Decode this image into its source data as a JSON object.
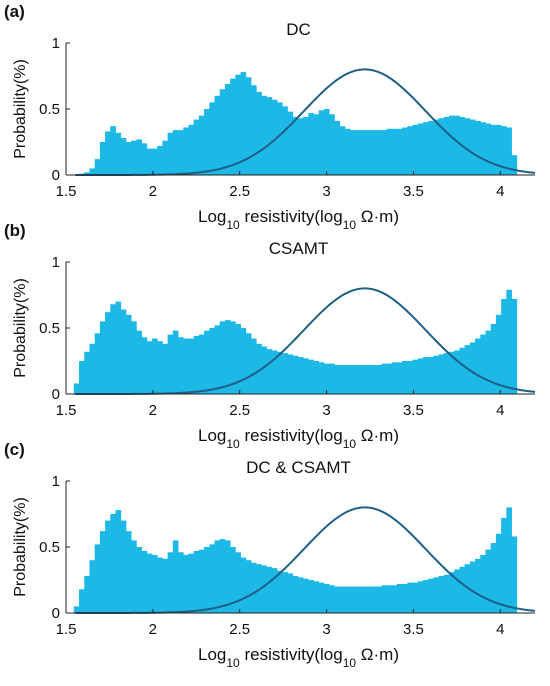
{
  "colors": {
    "histogram_fill": "#1CB8E6",
    "curve": "#1F5F86",
    "axis": "#222222",
    "text": "#111111"
  },
  "chart_data": [
    {
      "panel_label": "(a)",
      "title": "DC",
      "type": "bar",
      "xlabel": "Log10 resistivity(log10 Ω·m)",
      "ylabel": "Probability(%)",
      "xlim": [
        1.5,
        4.2
      ],
      "ylim": [
        0,
        1
      ],
      "xticks": [
        1.5,
        2,
        2.5,
        3,
        3.5,
        4
      ],
      "yticks": [
        0,
        0.5,
        1
      ],
      "xticklabels": [
        "1.5",
        "2",
        "2.5",
        "3",
        "3.5",
        "4"
      ],
      "yticklabels": [
        "0",
        "0.5",
        "1"
      ],
      "grid": false,
      "series": [
        {
          "type": "histogram",
          "x": [
            1.53,
            1.56,
            1.59,
            1.62,
            1.65,
            1.68,
            1.71,
            1.74,
            1.77,
            1.8,
            1.83,
            1.86,
            1.89,
            1.92,
            1.95,
            1.98,
            2.01,
            2.04,
            2.07,
            2.1,
            2.13,
            2.16,
            2.19,
            2.22,
            2.25,
            2.28,
            2.31,
            2.34,
            2.37,
            2.4,
            2.43,
            2.46,
            2.49,
            2.52,
            2.55,
            2.58,
            2.61,
            2.64,
            2.67,
            2.7,
            2.73,
            2.76,
            2.79,
            2.82,
            2.85,
            2.88,
            2.91,
            2.94,
            2.97,
            3.0,
            3.03,
            3.06,
            3.09,
            3.12,
            3.15,
            3.18,
            3.21,
            3.24,
            3.27,
            3.3,
            3.33,
            3.36,
            3.39,
            3.42,
            3.45,
            3.48,
            3.51,
            3.54,
            3.57,
            3.6,
            3.63,
            3.66,
            3.69,
            3.72,
            3.75,
            3.78,
            3.81,
            3.84,
            3.87,
            3.9,
            3.93,
            3.96,
            3.99,
            4.02,
            4.05,
            4.08
          ],
          "values": [
            0.0,
            0.0,
            0.01,
            0.02,
            0.05,
            0.12,
            0.25,
            0.33,
            0.37,
            0.32,
            0.28,
            0.25,
            0.26,
            0.27,
            0.24,
            0.2,
            0.2,
            0.22,
            0.26,
            0.32,
            0.34,
            0.34,
            0.36,
            0.38,
            0.42,
            0.45,
            0.5,
            0.55,
            0.6,
            0.65,
            0.69,
            0.73,
            0.76,
            0.78,
            0.74,
            0.68,
            0.63,
            0.6,
            0.59,
            0.57,
            0.55,
            0.52,
            0.48,
            0.44,
            0.43,
            0.44,
            0.47,
            0.46,
            0.49,
            0.5,
            0.46,
            0.41,
            0.37,
            0.35,
            0.34,
            0.34,
            0.34,
            0.34,
            0.34,
            0.34,
            0.34,
            0.35,
            0.35,
            0.35,
            0.36,
            0.37,
            0.38,
            0.39,
            0.4,
            0.41,
            0.42,
            0.43,
            0.44,
            0.45,
            0.45,
            0.44,
            0.43,
            0.42,
            0.41,
            0.4,
            0.39,
            0.38,
            0.38,
            0.37,
            0.36,
            0.15
          ]
        },
        {
          "type": "line",
          "mu": 3.22,
          "sigma": 0.35,
          "peak": 0.8
        }
      ]
    },
    {
      "panel_label": "(b)",
      "title": "CSAMT",
      "type": "bar",
      "xlabel": "Log10 resistivity(log10 Ω·m)",
      "ylabel": "Probability(%)",
      "xlim": [
        1.5,
        4.2
      ],
      "ylim": [
        0,
        1
      ],
      "xticks": [
        1.5,
        2,
        2.5,
        3,
        3.5,
        4
      ],
      "yticks": [
        0,
        0.5,
        1
      ],
      "xticklabels": [
        "1.5",
        "2",
        "2.5",
        "3",
        "3.5",
        "4"
      ],
      "yticklabels": [
        "0",
        "0.5",
        "1"
      ],
      "grid": false,
      "series": [
        {
          "type": "histogram",
          "x": [
            1.53,
            1.56,
            1.59,
            1.62,
            1.65,
            1.68,
            1.71,
            1.74,
            1.77,
            1.8,
            1.83,
            1.86,
            1.89,
            1.92,
            1.95,
            1.98,
            2.01,
            2.04,
            2.07,
            2.1,
            2.13,
            2.16,
            2.19,
            2.22,
            2.25,
            2.28,
            2.31,
            2.34,
            2.37,
            2.4,
            2.43,
            2.46,
            2.49,
            2.52,
            2.55,
            2.58,
            2.61,
            2.64,
            2.67,
            2.7,
            2.73,
            2.76,
            2.79,
            2.82,
            2.85,
            2.88,
            2.91,
            2.94,
            2.97,
            3.0,
            3.03,
            3.06,
            3.09,
            3.12,
            3.15,
            3.18,
            3.21,
            3.24,
            3.27,
            3.3,
            3.33,
            3.36,
            3.39,
            3.42,
            3.45,
            3.48,
            3.51,
            3.54,
            3.57,
            3.6,
            3.63,
            3.66,
            3.69,
            3.72,
            3.75,
            3.78,
            3.81,
            3.84,
            3.87,
            3.9,
            3.93,
            3.96,
            3.99,
            4.02,
            4.05,
            4.08
          ],
          "values": [
            0.0,
            0.08,
            0.25,
            0.32,
            0.38,
            0.46,
            0.55,
            0.62,
            0.68,
            0.7,
            0.64,
            0.6,
            0.55,
            0.48,
            0.43,
            0.4,
            0.42,
            0.4,
            0.38,
            0.45,
            0.48,
            0.43,
            0.42,
            0.42,
            0.44,
            0.45,
            0.48,
            0.5,
            0.52,
            0.55,
            0.56,
            0.55,
            0.53,
            0.5,
            0.46,
            0.42,
            0.38,
            0.36,
            0.34,
            0.33,
            0.32,
            0.31,
            0.3,
            0.29,
            0.28,
            0.27,
            0.26,
            0.25,
            0.24,
            0.23,
            0.23,
            0.22,
            0.22,
            0.22,
            0.22,
            0.22,
            0.22,
            0.22,
            0.22,
            0.22,
            0.23,
            0.23,
            0.24,
            0.24,
            0.25,
            0.25,
            0.26,
            0.27,
            0.28,
            0.28,
            0.29,
            0.3,
            0.31,
            0.32,
            0.33,
            0.35,
            0.37,
            0.39,
            0.42,
            0.45,
            0.48,
            0.53,
            0.6,
            0.72,
            0.79,
            0.72
          ]
        },
        {
          "type": "line",
          "mu": 3.22,
          "sigma": 0.35,
          "peak": 0.8
        }
      ]
    },
    {
      "panel_label": "(c)",
      "title": "DC & CSAMT",
      "type": "bar",
      "xlabel": "Log10 resistivity(log10 Ω·m)",
      "ylabel": "Probability(%)",
      "xlim": [
        1.5,
        4.2
      ],
      "ylim": [
        0,
        1
      ],
      "xticks": [
        1.5,
        2,
        2.5,
        3,
        3.5,
        4
      ],
      "yticks": [
        0,
        0.5,
        1
      ],
      "xticklabels": [
        "1.5",
        "2",
        "2.5",
        "3",
        "3.5",
        "4"
      ],
      "yticklabels": [
        "0",
        "0.5",
        "1"
      ],
      "grid": false,
      "series": [
        {
          "type": "histogram",
          "x": [
            1.53,
            1.56,
            1.59,
            1.62,
            1.65,
            1.68,
            1.71,
            1.74,
            1.77,
            1.8,
            1.83,
            1.86,
            1.89,
            1.92,
            1.95,
            1.98,
            2.01,
            2.04,
            2.07,
            2.1,
            2.13,
            2.16,
            2.19,
            2.22,
            2.25,
            2.28,
            2.31,
            2.34,
            2.37,
            2.4,
            2.43,
            2.46,
            2.49,
            2.52,
            2.55,
            2.58,
            2.61,
            2.64,
            2.67,
            2.7,
            2.73,
            2.76,
            2.79,
            2.82,
            2.85,
            2.88,
            2.91,
            2.94,
            2.97,
            3.0,
            3.03,
            3.06,
            3.09,
            3.12,
            3.15,
            3.18,
            3.21,
            3.24,
            3.27,
            3.3,
            3.33,
            3.36,
            3.39,
            3.42,
            3.45,
            3.48,
            3.51,
            3.54,
            3.57,
            3.6,
            3.63,
            3.66,
            3.69,
            3.72,
            3.75,
            3.78,
            3.81,
            3.84,
            3.87,
            3.9,
            3.93,
            3.96,
            3.99,
            4.02,
            4.05,
            4.08
          ],
          "values": [
            0.0,
            0.05,
            0.18,
            0.28,
            0.4,
            0.52,
            0.62,
            0.7,
            0.75,
            0.78,
            0.7,
            0.62,
            0.55,
            0.5,
            0.47,
            0.45,
            0.44,
            0.42,
            0.41,
            0.46,
            0.55,
            0.46,
            0.44,
            0.45,
            0.47,
            0.48,
            0.5,
            0.52,
            0.55,
            0.56,
            0.55,
            0.5,
            0.46,
            0.42,
            0.4,
            0.38,
            0.37,
            0.36,
            0.35,
            0.34,
            0.32,
            0.31,
            0.3,
            0.28,
            0.27,
            0.26,
            0.25,
            0.24,
            0.23,
            0.22,
            0.21,
            0.2,
            0.2,
            0.2,
            0.2,
            0.2,
            0.2,
            0.2,
            0.2,
            0.2,
            0.21,
            0.21,
            0.21,
            0.22,
            0.22,
            0.23,
            0.23,
            0.24,
            0.25,
            0.26,
            0.27,
            0.28,
            0.29,
            0.31,
            0.33,
            0.35,
            0.37,
            0.39,
            0.41,
            0.44,
            0.48,
            0.53,
            0.6,
            0.72,
            0.8,
            0.58
          ]
        },
        {
          "type": "line",
          "mu": 3.22,
          "sigma": 0.35,
          "peak": 0.8
        }
      ]
    }
  ]
}
